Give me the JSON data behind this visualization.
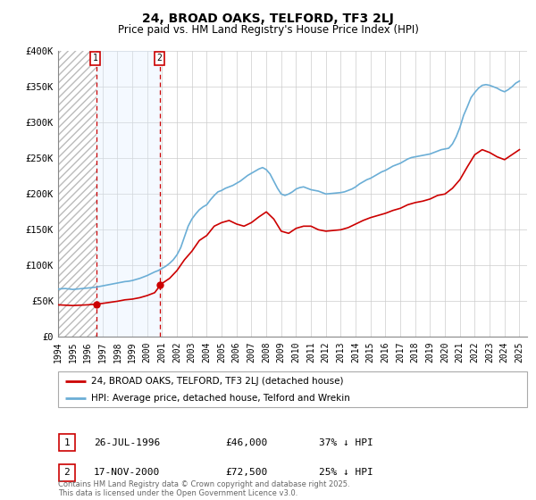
{
  "title": "24, BROAD OAKS, TELFORD, TF3 2LJ",
  "subtitle": "Price paid vs. HM Land Registry's House Price Index (HPI)",
  "legend_line1": "24, BROAD OAKS, TELFORD, TF3 2LJ (detached house)",
  "legend_line2": "HPI: Average price, detached house, Telford and Wrekin",
  "sale1_label": "1",
  "sale1_date": "26-JUL-1996",
  "sale1_price": "£46,000",
  "sale1_hpi": "37% ↓ HPI",
  "sale2_label": "2",
  "sale2_date": "17-NOV-2000",
  "sale2_price": "£72,500",
  "sale2_hpi": "25% ↓ HPI",
  "footer": "Contains HM Land Registry data © Crown copyright and database right 2025.\nThis data is licensed under the Open Government Licence v3.0.",
  "sale1_year": 1996.57,
  "sale2_year": 2000.88,
  "sale1_value": 46000,
  "sale2_value": 72500,
  "ylim": [
    0,
    400000
  ],
  "xlim": [
    1994.0,
    2025.5
  ],
  "background_color": "#ffffff",
  "grid_color": "#cccccc",
  "hpi_color": "#6baed6",
  "price_color": "#cc0000",
  "shade_color": "#ddeeff",
  "hatch_color": "#cccccc",
  "vline_color": "#cc0000",
  "hpi_data": [
    [
      1994.0,
      67000
    ],
    [
      1994.25,
      67500
    ],
    [
      1994.5,
      67800
    ],
    [
      1994.75,
      67200
    ],
    [
      1995.0,
      66500
    ],
    [
      1995.25,
      67000
    ],
    [
      1995.5,
      67500
    ],
    [
      1995.75,
      68000
    ],
    [
      1996.0,
      68500
    ],
    [
      1996.25,
      69000
    ],
    [
      1996.5,
      69500
    ],
    [
      1996.75,
      70500
    ],
    [
      1997.0,
      71500
    ],
    [
      1997.25,
      72500
    ],
    [
      1997.5,
      73500
    ],
    [
      1997.75,
      74500
    ],
    [
      1998.0,
      75500
    ],
    [
      1998.25,
      76500
    ],
    [
      1998.5,
      77500
    ],
    [
      1998.75,
      78000
    ],
    [
      1999.0,
      79000
    ],
    [
      1999.25,
      80500
    ],
    [
      1999.5,
      82000
    ],
    [
      1999.75,
      84000
    ],
    [
      2000.0,
      86000
    ],
    [
      2000.25,
      88500
    ],
    [
      2000.5,
      91000
    ],
    [
      2000.75,
      93000
    ],
    [
      2001.0,
      96000
    ],
    [
      2001.25,
      99000
    ],
    [
      2001.5,
      103000
    ],
    [
      2001.75,
      108000
    ],
    [
      2002.0,
      115000
    ],
    [
      2002.25,
      125000
    ],
    [
      2002.5,
      140000
    ],
    [
      2002.75,
      155000
    ],
    [
      2003.0,
      165000
    ],
    [
      2003.25,
      172000
    ],
    [
      2003.5,
      178000
    ],
    [
      2003.75,
      182000
    ],
    [
      2004.0,
      185000
    ],
    [
      2004.25,
      192000
    ],
    [
      2004.5,
      198000
    ],
    [
      2004.75,
      203000
    ],
    [
      2005.0,
      205000
    ],
    [
      2005.25,
      208000
    ],
    [
      2005.5,
      210000
    ],
    [
      2005.75,
      212000
    ],
    [
      2006.0,
      215000
    ],
    [
      2006.25,
      218000
    ],
    [
      2006.5,
      222000
    ],
    [
      2006.75,
      226000
    ],
    [
      2007.0,
      229000
    ],
    [
      2007.25,
      232000
    ],
    [
      2007.5,
      235000
    ],
    [
      2007.75,
      237000
    ],
    [
      2008.0,
      234000
    ],
    [
      2008.25,
      228000
    ],
    [
      2008.5,
      218000
    ],
    [
      2008.75,
      208000
    ],
    [
      2009.0,
      200000
    ],
    [
      2009.25,
      198000
    ],
    [
      2009.5,
      200000
    ],
    [
      2009.75,
      203000
    ],
    [
      2010.0,
      207000
    ],
    [
      2010.25,
      209000
    ],
    [
      2010.5,
      210000
    ],
    [
      2010.75,
      208000
    ],
    [
      2011.0,
      206000
    ],
    [
      2011.25,
      205000
    ],
    [
      2011.5,
      204000
    ],
    [
      2011.75,
      202000
    ],
    [
      2012.0,
      200000
    ],
    [
      2012.25,
      200500
    ],
    [
      2012.5,
      201000
    ],
    [
      2012.75,
      201500
    ],
    [
      2013.0,
      202000
    ],
    [
      2013.25,
      203000
    ],
    [
      2013.5,
      205000
    ],
    [
      2013.75,
      207000
    ],
    [
      2014.0,
      210000
    ],
    [
      2014.25,
      214000
    ],
    [
      2014.5,
      217000
    ],
    [
      2014.75,
      220000
    ],
    [
      2015.0,
      222000
    ],
    [
      2015.25,
      225000
    ],
    [
      2015.5,
      228000
    ],
    [
      2015.75,
      231000
    ],
    [
      2016.0,
      233000
    ],
    [
      2016.25,
      236000
    ],
    [
      2016.5,
      239000
    ],
    [
      2016.75,
      241000
    ],
    [
      2017.0,
      243000
    ],
    [
      2017.25,
      246000
    ],
    [
      2017.5,
      249000
    ],
    [
      2017.75,
      251000
    ],
    [
      2018.0,
      252000
    ],
    [
      2018.25,
      253000
    ],
    [
      2018.5,
      254000
    ],
    [
      2018.75,
      255000
    ],
    [
      2019.0,
      256000
    ],
    [
      2019.25,
      258000
    ],
    [
      2019.5,
      260000
    ],
    [
      2019.75,
      262000
    ],
    [
      2020.0,
      263000
    ],
    [
      2020.25,
      264000
    ],
    [
      2020.5,
      270000
    ],
    [
      2020.75,
      280000
    ],
    [
      2021.0,
      293000
    ],
    [
      2021.25,
      310000
    ],
    [
      2021.5,
      322000
    ],
    [
      2021.75,
      335000
    ],
    [
      2022.0,
      342000
    ],
    [
      2022.25,
      348000
    ],
    [
      2022.5,
      352000
    ],
    [
      2022.75,
      353000
    ],
    [
      2023.0,
      352000
    ],
    [
      2023.25,
      350000
    ],
    [
      2023.5,
      348000
    ],
    [
      2023.75,
      345000
    ],
    [
      2024.0,
      343000
    ],
    [
      2024.25,
      346000
    ],
    [
      2024.5,
      350000
    ],
    [
      2024.75,
      355000
    ],
    [
      2025.0,
      358000
    ]
  ],
  "price_data": [
    [
      1994.0,
      45000
    ],
    [
      1994.5,
      44500
    ],
    [
      1995.0,
      44000
    ],
    [
      1995.5,
      44500
    ],
    [
      1996.0,
      45000
    ],
    [
      1996.57,
      46000
    ],
    [
      1997.0,
      47000
    ],
    [
      1997.5,
      48500
    ],
    [
      1998.0,
      50000
    ],
    [
      1998.5,
      52000
    ],
    [
      1999.0,
      53000
    ],
    [
      1999.5,
      55000
    ],
    [
      2000.0,
      58000
    ],
    [
      2000.5,
      62000
    ],
    [
      2000.88,
      72500
    ],
    [
      2001.0,
      75000
    ],
    [
      2001.5,
      82000
    ],
    [
      2002.0,
      93000
    ],
    [
      2002.5,
      108000
    ],
    [
      2003.0,
      120000
    ],
    [
      2003.5,
      135000
    ],
    [
      2004.0,
      142000
    ],
    [
      2004.5,
      155000
    ],
    [
      2005.0,
      160000
    ],
    [
      2005.5,
      163000
    ],
    [
      2006.0,
      158000
    ],
    [
      2006.5,
      155000
    ],
    [
      2007.0,
      160000
    ],
    [
      2007.5,
      168000
    ],
    [
      2008.0,
      175000
    ],
    [
      2008.5,
      165000
    ],
    [
      2009.0,
      148000
    ],
    [
      2009.5,
      145000
    ],
    [
      2010.0,
      152000
    ],
    [
      2010.5,
      155000
    ],
    [
      2011.0,
      155000
    ],
    [
      2011.5,
      150000
    ],
    [
      2012.0,
      148000
    ],
    [
      2012.5,
      149000
    ],
    [
      2013.0,
      150000
    ],
    [
      2013.5,
      153000
    ],
    [
      2014.0,
      158000
    ],
    [
      2014.5,
      163000
    ],
    [
      2015.0,
      167000
    ],
    [
      2015.5,
      170000
    ],
    [
      2016.0,
      173000
    ],
    [
      2016.5,
      177000
    ],
    [
      2017.0,
      180000
    ],
    [
      2017.5,
      185000
    ],
    [
      2018.0,
      188000
    ],
    [
      2018.5,
      190000
    ],
    [
      2019.0,
      193000
    ],
    [
      2019.5,
      198000
    ],
    [
      2020.0,
      200000
    ],
    [
      2020.5,
      208000
    ],
    [
      2021.0,
      220000
    ],
    [
      2021.5,
      238000
    ],
    [
      2022.0,
      255000
    ],
    [
      2022.5,
      262000
    ],
    [
      2023.0,
      258000
    ],
    [
      2023.5,
      252000
    ],
    [
      2024.0,
      248000
    ],
    [
      2024.5,
      255000
    ],
    [
      2025.0,
      262000
    ]
  ],
  "yticks": [
    0,
    50000,
    100000,
    150000,
    200000,
    250000,
    300000,
    350000,
    400000
  ],
  "ytick_labels": [
    "£0",
    "£50K",
    "£100K",
    "£150K",
    "£200K",
    "£250K",
    "£300K",
    "£350K",
    "£400K"
  ],
  "xticks": [
    1994,
    1995,
    1996,
    1997,
    1998,
    1999,
    2000,
    2001,
    2002,
    2003,
    2004,
    2005,
    2006,
    2007,
    2008,
    2009,
    2010,
    2011,
    2012,
    2013,
    2014,
    2015,
    2016,
    2017,
    2018,
    2019,
    2020,
    2021,
    2022,
    2023,
    2024,
    2025
  ]
}
